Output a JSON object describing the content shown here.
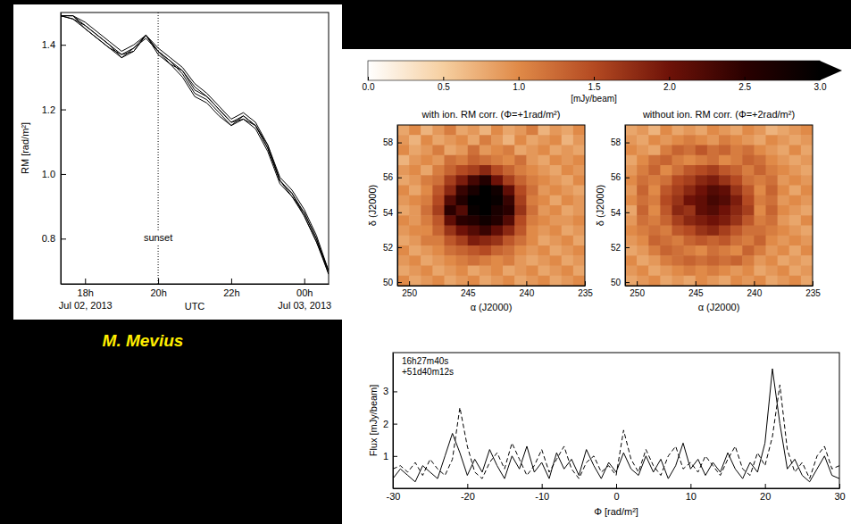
{
  "credit": "M. Mevius",
  "chart_data": [
    {
      "type": "line",
      "xlabel": "UTC",
      "ylabel": "RM [rad/m²]",
      "x": [
        "2013-07-02 17:20",
        "2013-07-02 17:40",
        "2013-07-02 18:00",
        "2013-07-02 18:20",
        "2013-07-02 18:40",
        "2013-07-02 19:00",
        "2013-07-02 19:20",
        "2013-07-02 19:40",
        "2013-07-02 20:00",
        "2013-07-02 20:20",
        "2013-07-02 20:40",
        "2013-07-02 21:00",
        "2013-07-02 21:20",
        "2013-07-02 21:40",
        "2013-07-02 22:00",
        "2013-07-02 22:20",
        "2013-07-02 22:40",
        "2013-07-02 23:00",
        "2013-07-02 23:20",
        "2013-07-02 23:40",
        "2013-07-03 00:00",
        "2013-07-03 00:20",
        "2013-07-03 00:40"
      ],
      "series": [
        {
          "color": "#000000",
          "line_style": "solid",
          "values": [
            1.49,
            1.49,
            1.46,
            1.43,
            1.4,
            1.37,
            1.39,
            1.43,
            1.38,
            1.35,
            1.32,
            1.26,
            1.24,
            1.2,
            1.16,
            1.18,
            1.15,
            1.08,
            0.98,
            0.94,
            0.88,
            0.8,
            0.7
          ]
        },
        {
          "color": "#000000",
          "line_style": "solid",
          "values": [
            1.49,
            1.48,
            1.45,
            1.42,
            1.39,
            1.37,
            1.38,
            1.43,
            1.37,
            1.34,
            1.3,
            1.24,
            1.22,
            1.18,
            1.15,
            1.17,
            1.14,
            1.07,
            0.97,
            0.93,
            0.87,
            0.79,
            0.69
          ]
        },
        {
          "color": "#000000",
          "line_style": "solid",
          "values": [
            1.49,
            1.49,
            1.47,
            1.44,
            1.41,
            1.38,
            1.4,
            1.43,
            1.39,
            1.36,
            1.33,
            1.28,
            1.25,
            1.21,
            1.17,
            1.19,
            1.16,
            1.09,
            0.99,
            0.95,
            0.89,
            0.81,
            0.7
          ]
        },
        {
          "color": "#000000",
          "line_style": "solid",
          "values": [
            1.49,
            1.48,
            1.46,
            1.43,
            1.4,
            1.36,
            1.39,
            1.42,
            1.38,
            1.35,
            1.31,
            1.25,
            1.23,
            1.19,
            1.15,
            1.18,
            1.15,
            1.08,
            0.98,
            0.93,
            0.88,
            0.8,
            0.69
          ]
        },
        {
          "color": "#000000",
          "line_style": "solid",
          "values": [
            1.49,
            1.49,
            1.45,
            1.42,
            1.39,
            1.36,
            1.38,
            1.43,
            1.38,
            1.34,
            1.32,
            1.27,
            1.24,
            1.2,
            1.16,
            1.17,
            1.15,
            1.09,
            0.98,
            0.94,
            0.87,
            0.79,
            0.7
          ]
        }
      ],
      "annotations": [
        {
          "x": "2013-07-02 20:00",
          "text": "sunset"
        }
      ],
      "xlim": [
        "2013-07-02 17:20",
        "2013-07-03 00:40"
      ],
      "xticks": [
        {
          "value": "2013-07-02 18:00",
          "label": "18h\nJul 02, 2013"
        },
        {
          "value": "2013-07-02 20:00",
          "label": "20h"
        },
        {
          "value": "2013-07-02 22:00",
          "label": "22h"
        },
        {
          "value": "2013-07-03 00:00",
          "label": "00h\nJul 03, 2013"
        }
      ],
      "ylim": [
        0.66,
        1.5
      ],
      "yticks": [
        0.8,
        {
          "value": 1.0,
          "label": "1.0"
        },
        1.2,
        1.4
      ]
    },
    {
      "type": "colorbar",
      "label": "[mJy/beam]",
      "range": [
        0,
        3
      ],
      "ticks": [
        {
          "value": 0,
          "label": "0.0"
        },
        0.5,
        {
          "value": 1,
          "label": "1.0"
        },
        1.5,
        {
          "value": 2,
          "label": "2.0"
        },
        2.5,
        {
          "value": 3,
          "label": "3.0"
        }
      ],
      "colors": [
        "#ffffff",
        "#f6cfa0",
        "#e08a48",
        "#b44a22",
        "#6e1208",
        "#2a0000",
        "#000000"
      ]
    },
    {
      "type": "heatmap",
      "title": "with ion. RM corr. (Φ=+1rad/m²)",
      "xlabel": "α (J2000)",
      "ylabel": "δ (J2000)",
      "xlim": [
        251,
        235
      ],
      "xticks": [
        250,
        245,
        240,
        235
      ],
      "ylim": [
        49.8,
        59
      ],
      "yticks": [
        50,
        52,
        54,
        56,
        58
      ],
      "z": [
        [
          0.8,
          1.0,
          0.7,
          0.9,
          1.1,
          0.8,
          0.9,
          0.7,
          1.0,
          0.8,
          0.9,
          1.1,
          0.7,
          0.9,
          0.8,
          1.0
        ],
        [
          0.9,
          0.7,
          1.0,
          0.8,
          0.9,
          1.0,
          0.8,
          1.1,
          0.9,
          0.7,
          1.0,
          0.8,
          0.9,
          1.0,
          0.7,
          0.9
        ],
        [
          1.0,
          0.8,
          0.9,
          1.1,
          0.8,
          0.9,
          1.2,
          0.9,
          1.0,
          1.1,
          0.8,
          0.9,
          1.0,
          0.8,
          0.9,
          0.8
        ],
        [
          0.7,
          0.9,
          1.0,
          0.9,
          1.2,
          1.1,
          1.3,
          1.2,
          1.1,
          1.0,
          1.2,
          0.9,
          0.8,
          1.0,
          0.9,
          1.0
        ],
        [
          0.9,
          1.0,
          0.8,
          1.1,
          1.3,
          1.5,
          1.6,
          1.8,
          1.5,
          1.3,
          1.1,
          1.0,
          0.9,
          0.8,
          1.0,
          0.9
        ],
        [
          0.8,
          0.9,
          1.1,
          1.2,
          1.6,
          1.9,
          2.3,
          2.6,
          2.0,
          1.6,
          1.3,
          1.1,
          1.0,
          0.9,
          0.8,
          1.0
        ],
        [
          1.0,
          0.8,
          1.0,
          1.4,
          1.8,
          2.4,
          2.7,
          3.0,
          2.8,
          2.1,
          1.5,
          1.2,
          0.9,
          1.0,
          0.9,
          0.8
        ],
        [
          0.9,
          1.0,
          1.1,
          1.5,
          2.2,
          2.6,
          3.0,
          3.0,
          2.9,
          2.4,
          1.6,
          1.1,
          1.0,
          0.8,
          1.0,
          0.9
        ],
        [
          0.8,
          0.9,
          1.2,
          1.6,
          2.5,
          2.2,
          2.9,
          3.0,
          2.7,
          2.5,
          1.7,
          1.2,
          0.9,
          1.0,
          0.8,
          0.9
        ],
        [
          1.0,
          0.9,
          1.1,
          1.4,
          2.1,
          2.5,
          2.6,
          2.8,
          2.6,
          2.2,
          1.5,
          1.1,
          1.0,
          0.9,
          0.9,
          1.0
        ],
        [
          0.9,
          1.0,
          1.0,
          1.3,
          1.7,
          2.0,
          2.2,
          2.4,
          2.1,
          1.8,
          1.4,
          1.0,
          0.9,
          1.0,
          0.8,
          0.9
        ],
        [
          0.8,
          0.9,
          1.1,
          1.1,
          1.4,
          1.6,
          1.9,
          1.8,
          1.7,
          1.4,
          1.2,
          1.0,
          0.8,
          0.9,
          1.0,
          0.8
        ],
        [
          1.0,
          0.8,
          0.9,
          1.0,
          1.2,
          1.3,
          1.4,
          1.5,
          1.3,
          1.2,
          1.0,
          0.9,
          1.0,
          0.8,
          0.9,
          1.0
        ],
        [
          0.9,
          1.0,
          0.8,
          0.9,
          1.0,
          1.1,
          1.2,
          1.1,
          1.0,
          1.1,
          0.9,
          0.8,
          0.9,
          1.0,
          0.8,
          0.9
        ],
        [
          0.8,
          0.9,
          1.0,
          0.8,
          0.9,
          1.0,
          0.8,
          0.9,
          1.0,
          0.8,
          0.9,
          1.0,
          0.8,
          0.9,
          1.0,
          0.8
        ],
        [
          1.0,
          0.8,
          0.9,
          1.0,
          0.8,
          0.9,
          1.0,
          0.8,
          0.9,
          1.0,
          0.8,
          0.9,
          1.0,
          0.8,
          0.9,
          1.0
        ]
      ]
    },
    {
      "type": "heatmap",
      "title": "without ion. RM corr. (Φ=+2rad/m²)",
      "xlabel": "α (J2000)",
      "ylabel": "δ (J2000)",
      "xlim": [
        251,
        235
      ],
      "xticks": [
        250,
        245,
        240,
        235
      ],
      "ylim": [
        49.8,
        59
      ],
      "yticks": [
        50,
        52,
        54,
        56,
        58
      ],
      "z": [
        [
          0.8,
          0.9,
          0.7,
          1.0,
          0.8,
          0.9,
          0.8,
          1.0,
          0.9,
          0.8,
          1.0,
          0.9,
          0.7,
          0.8,
          0.9,
          1.0
        ],
        [
          0.9,
          0.8,
          1.0,
          0.9,
          1.0,
          1.1,
          1.0,
          0.9,
          1.1,
          1.0,
          0.9,
          0.8,
          1.0,
          0.9,
          0.8,
          0.9
        ],
        [
          1.0,
          0.9,
          0.8,
          1.1,
          1.3,
          1.2,
          1.4,
          1.2,
          1.3,
          1.1,
          1.2,
          1.0,
          0.9,
          0.8,
          1.0,
          0.8
        ],
        [
          0.8,
          1.0,
          1.2,
          1.3,
          1.1,
          1.0,
          1.1,
          1.2,
          1.0,
          1.1,
          1.3,
          1.2,
          1.0,
          0.9,
          0.8,
          0.9
        ],
        [
          0.9,
          1.1,
          1.3,
          1.0,
          1.2,
          1.4,
          1.5,
          1.6,
          1.4,
          1.3,
          1.1,
          1.3,
          1.1,
          1.0,
          0.9,
          0.8
        ],
        [
          1.0,
          1.2,
          1.1,
          1.2,
          1.5,
          1.6,
          1.8,
          1.9,
          1.7,
          1.5,
          1.2,
          1.1,
          1.2,
          0.9,
          1.0,
          0.9
        ],
        [
          0.9,
          1.3,
          1.0,
          1.4,
          1.6,
          1.8,
          2.0,
          2.2,
          2.1,
          1.7,
          1.4,
          1.0,
          1.3,
          1.0,
          0.8,
          1.0
        ],
        [
          1.0,
          1.2,
          1.1,
          1.5,
          1.7,
          2.0,
          2.1,
          2.3,
          2.2,
          1.9,
          1.5,
          1.1,
          1.2,
          0.9,
          1.0,
          0.9
        ],
        [
          0.8,
          1.3,
          1.0,
          1.4,
          1.8,
          1.7,
          2.1,
          2.2,
          2.0,
          1.8,
          1.6,
          1.0,
          1.3,
          1.0,
          0.9,
          0.8
        ],
        [
          0.9,
          1.2,
          1.1,
          1.3,
          1.6,
          1.8,
          1.9,
          2.0,
          1.9,
          1.7,
          1.4,
          1.1,
          1.2,
          0.9,
          0.8,
          1.0
        ],
        [
          1.0,
          1.1,
          1.2,
          1.1,
          1.4,
          1.5,
          1.7,
          1.8,
          1.6,
          1.4,
          1.2,
          1.2,
          1.1,
          1.0,
          0.9,
          0.8
        ],
        [
          0.9,
          1.0,
          1.3,
          1.2,
          1.1,
          1.3,
          1.4,
          1.3,
          1.4,
          1.2,
          1.1,
          1.3,
          1.0,
          0.9,
          1.0,
          0.9
        ],
        [
          0.8,
          0.9,
          1.1,
          1.3,
          1.2,
          1.1,
          1.0,
          1.2,
          1.1,
          1.0,
          1.3,
          1.1,
          0.9,
          1.0,
          0.8,
          1.0
        ],
        [
          1.0,
          0.8,
          0.9,
          1.1,
          1.2,
          1.3,
          1.2,
          1.3,
          1.2,
          1.3,
          1.1,
          0.9,
          1.0,
          0.8,
          0.9,
          0.8
        ],
        [
          0.9,
          1.0,
          0.8,
          0.9,
          1.0,
          1.1,
          1.0,
          1.1,
          1.0,
          0.9,
          1.0,
          0.8,
          0.9,
          1.0,
          0.8,
          0.9
        ],
        [
          0.8,
          0.9,
          1.0,
          0.8,
          0.9,
          0.8,
          1.0,
          0.9,
          0.8,
          1.0,
          0.9,
          1.0,
          0.8,
          0.9,
          1.0,
          0.8
        ]
      ]
    },
    {
      "type": "line",
      "xlabel": "Φ [rad/m²]",
      "ylabel": "Flux [mJy/beam]",
      "annotations": [
        "16h27m40s",
        "+51d40m12s"
      ],
      "x": [
        -30,
        -29,
        -28,
        -27,
        -26,
        -25,
        -24,
        -23,
        -22,
        -21,
        -20,
        -19,
        -18,
        -17,
        -16,
        -15,
        -14,
        -13,
        -12,
        -11,
        -10,
        -9,
        -8,
        -7,
        -6,
        -5,
        -4,
        -3,
        -2,
        -1,
        0,
        1,
        2,
        3,
        4,
        5,
        6,
        7,
        8,
        9,
        10,
        11,
        12,
        13,
        14,
        15,
        16,
        17,
        18,
        19,
        20,
        21,
        22,
        23,
        24,
        25,
        26,
        27,
        28,
        29,
        30
      ],
      "series": [
        {
          "color": "#000000",
          "line_style": "solid",
          "values": [
            0.3,
            0.6,
            0.4,
            0.2,
            0.7,
            0.5,
            0.3,
            1.0,
            1.7,
            1.1,
            0.4,
            0.9,
            0.5,
            1.2,
            0.7,
            0.3,
            1.0,
            0.6,
            1.3,
            0.5,
            0.8,
            0.3,
            1.1,
            0.6,
            0.9,
            0.4,
            1.2,
            0.7,
            0.3,
            0.8,
            0.5,
            1.1,
            0.6,
            0.4,
            1.0,
            0.5,
            0.9,
            0.3,
            0.7,
            1.4,
            0.6,
            0.9,
            0.4,
            0.8,
            0.5,
            1.1,
            0.6,
            0.3,
            0.8,
            0.5,
            1.4,
            3.7,
            2.0,
            0.6,
            0.9,
            0.4,
            0.2,
            0.6,
            1.0,
            0.4,
            0.3
          ]
        },
        {
          "color": "#000000",
          "line_style": "dashed",
          "values": [
            0.6,
            0.7,
            0.5,
            0.8,
            0.4,
            0.9,
            0.6,
            0.4,
            0.9,
            2.5,
            1.3,
            0.5,
            0.3,
            0.8,
            1.1,
            0.6,
            1.4,
            0.9,
            0.4,
            0.7,
            1.2,
            0.5,
            0.9,
            1.3,
            0.6,
            0.3,
            0.8,
            1.0,
            0.5,
            0.7,
            0.4,
            1.8,
            0.9,
            0.5,
            1.2,
            0.7,
            0.4,
            1.0,
            1.3,
            0.6,
            0.8,
            0.5,
            1.0,
            0.7,
            0.4,
            0.9,
            1.3,
            0.6,
            0.4,
            1.1,
            0.7,
            1.6,
            3.2,
            1.2,
            0.5,
            0.8,
            0.3,
            1.0,
            1.3,
            0.6,
            0.7
          ]
        }
      ],
      "xlim": [
        -30,
        30
      ],
      "xticks": [
        -30,
        -20,
        -10,
        0,
        10,
        20,
        30
      ],
      "ylim": [
        0,
        4.2
      ],
      "yticks": [
        1,
        2,
        3
      ]
    }
  ]
}
